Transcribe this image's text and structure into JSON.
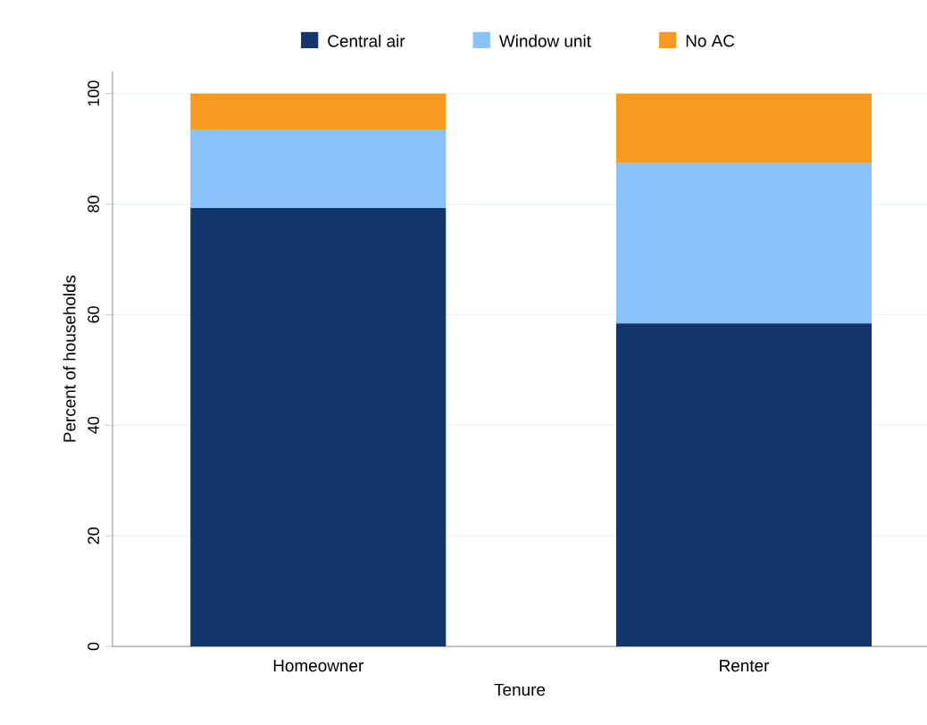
{
  "chart_data": {
    "type": "bar",
    "stacked": true,
    "xlabel": "Tenure",
    "ylabel": "Percent of households",
    "categories": [
      "Homeowner",
      "Renter"
    ],
    "series": [
      {
        "name": "Central air",
        "color": "#12366b",
        "values": [
          79.3,
          58.4
        ]
      },
      {
        "name": "Window unit",
        "color": "#89c3fd",
        "values": [
          14.2,
          29.0
        ]
      },
      {
        "name": "No AC",
        "color": "#f99b21",
        "values": [
          6.5,
          12.6
        ]
      }
    ],
    "ylim": [
      0,
      104
    ],
    "yticks": [
      0,
      20,
      40,
      60,
      80,
      100
    ],
    "grid": "y",
    "legend": "top"
  }
}
